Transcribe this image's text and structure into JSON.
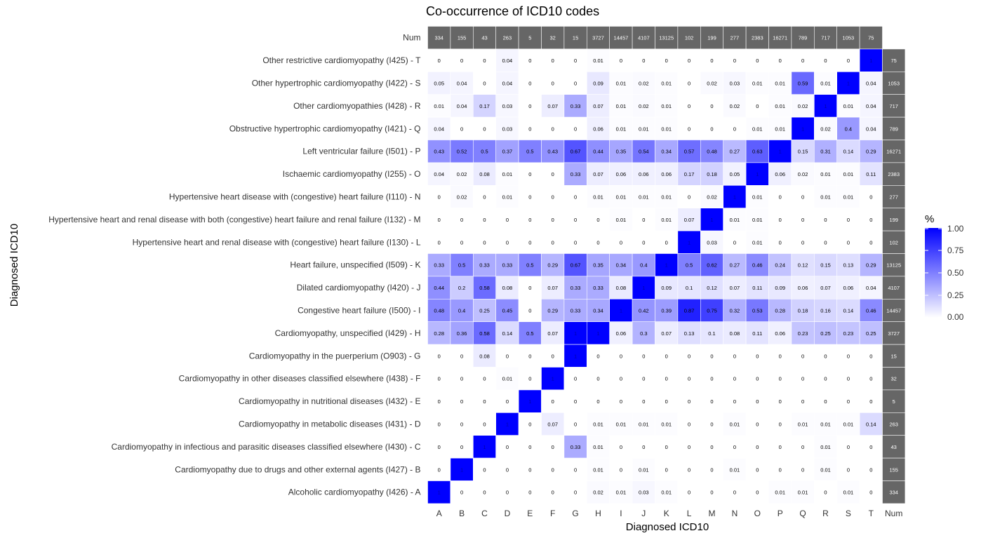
{
  "chart_data": {
    "type": "heatmap",
    "title": "Co-occurrence of ICD10 codes",
    "xlabel": "Diagnosed ICD10",
    "ylabel": "Diagnosed ICD10",
    "columns": [
      "A",
      "B",
      "C",
      "D",
      "E",
      "F",
      "G",
      "H",
      "I",
      "J",
      "K",
      "L",
      "M",
      "N",
      "O",
      "P",
      "Q",
      "R",
      "S",
      "T"
    ],
    "num_label": "Num",
    "num_column": [
      "334",
      "155",
      "43",
      "263",
      "5",
      "32",
      "15",
      "3727",
      "14457",
      "4107",
      "13125",
      "102",
      "199",
      "277",
      "2383",
      "16271",
      "789",
      "717",
      "1053",
      "75"
    ],
    "rows": [
      {
        "label": "Other restrictive cardiomyopathy (I425) - T",
        "values": [
          "0",
          "0",
          "0",
          "0.04",
          "0",
          "0",
          "0",
          "0.01",
          "0",
          "0",
          "0",
          "0",
          "0",
          "0",
          "0",
          "0",
          "0",
          "0",
          "0",
          "1"
        ],
        "num": "75"
      },
      {
        "label": "Other hypertrophic cardiomyopathy (I422) - S",
        "values": [
          "0.05",
          "0.04",
          "0",
          "0.04",
          "0",
          "0",
          "0",
          "0.09",
          "0.01",
          "0.02",
          "0.01",
          "0",
          "0.02",
          "0.03",
          "0.01",
          "0.01",
          "0.59",
          "0.01",
          "1",
          "0.04"
        ],
        "num": "1053"
      },
      {
        "label": "Other cardiomyopathies (I428) - R",
        "values": [
          "0.01",
          "0.04",
          "0.17",
          "0.03",
          "0",
          "0.07",
          "0.33",
          "0.07",
          "0.01",
          "0.02",
          "0.01",
          "0",
          "0",
          "0.02",
          "0",
          "0.01",
          "0.02",
          "1",
          "0.01",
          "0.04"
        ],
        "num": "717"
      },
      {
        "label": "Obstructive hypertrophic cardiomyopathy (I421) - Q",
        "values": [
          "0.04",
          "0",
          "0",
          "0.03",
          "0",
          "0",
          "0",
          "0.06",
          "0.01",
          "0.01",
          "0.01",
          "0",
          "0",
          "0",
          "0.01",
          "0.01",
          "1",
          "0.02",
          "0.4",
          "0.04"
        ],
        "num": "789"
      },
      {
        "label": "Left ventricular failure (I501) - P",
        "values": [
          "0.43",
          "0.52",
          "0.5",
          "0.37",
          "0.5",
          "0.43",
          "0.67",
          "0.44",
          "0.35",
          "0.54",
          "0.34",
          "0.57",
          "0.48",
          "0.27",
          "0.63",
          "1",
          "0.15",
          "0.31",
          "0.14",
          "0.29"
        ],
        "num": "16271"
      },
      {
        "label": "Ischaemic cardiomyopathy (I255) - O",
        "values": [
          "0.04",
          "0.02",
          "0.08",
          "0.01",
          "0",
          "0",
          "0.33",
          "0.07",
          "0.06",
          "0.06",
          "0.06",
          "0.17",
          "0.18",
          "0.05",
          "1",
          "0.06",
          "0.02",
          "0.01",
          "0.01",
          "0.11"
        ],
        "num": "2383"
      },
      {
        "label": "Hypertensive heart disease with (congestive) heart failure (I110) - N",
        "values": [
          "0",
          "0.02",
          "0",
          "0.01",
          "0",
          "0",
          "0",
          "0.01",
          "0.01",
          "0.01",
          "0.01",
          "0",
          "0.02",
          "1",
          "0.01",
          "0",
          "0",
          "0.01",
          "0.01",
          "0"
        ],
        "num": "277"
      },
      {
        "label": "Hypertensive heart and renal disease with both (congestive) heart failure and renal failure (I132) - M",
        "values": [
          "0",
          "0",
          "0",
          "0",
          "0",
          "0",
          "0",
          "0",
          "0.01",
          "0",
          "0.01",
          "0.07",
          "1",
          "0.01",
          "0.01",
          "0",
          "0",
          "0",
          "0",
          "0"
        ],
        "num": "199"
      },
      {
        "label": "Hypertensive heart and renal disease with (congestive) heart failure (I130) - L",
        "values": [
          "0",
          "0",
          "0",
          "0",
          "0",
          "0",
          "0",
          "0",
          "0",
          "0",
          "0",
          "1",
          "0.03",
          "0",
          "0.01",
          "0",
          "0",
          "0",
          "0",
          "0"
        ],
        "num": "102"
      },
      {
        "label": "Heart failure, unspecified (I509) - K",
        "values": [
          "0.33",
          "0.5",
          "0.33",
          "0.33",
          "0.5",
          "0.29",
          "0.67",
          "0.35",
          "0.34",
          "0.4",
          "1",
          "0.5",
          "0.62",
          "0.27",
          "0.46",
          "0.24",
          "0.12",
          "0.15",
          "0.13",
          "0.29"
        ],
        "num": "13125"
      },
      {
        "label": "Dilated cardiomyopathy (I420) - J",
        "values": [
          "0.44",
          "0.2",
          "0.58",
          "0.08",
          "0",
          "0.07",
          "0.33",
          "0.33",
          "0.08",
          "1",
          "0.09",
          "0.1",
          "0.12",
          "0.07",
          "0.11",
          "0.09",
          "0.06",
          "0.07",
          "0.06",
          "0.04"
        ],
        "num": "4107"
      },
      {
        "label": "Congestive heart failure (I500) - I",
        "values": [
          "0.48",
          "0.4",
          "0.25",
          "0.45",
          "0",
          "0.29",
          "0.33",
          "0.34",
          "1",
          "0.42",
          "0.39",
          "0.87",
          "0.75",
          "0.32",
          "0.53",
          "0.28",
          "0.18",
          "0.16",
          "0.14",
          "0.46"
        ],
        "num": "14457"
      },
      {
        "label": "Cardiomyopathy, unspecified (I429) - H",
        "values": [
          "0.28",
          "0.36",
          "0.58",
          "0.14",
          "0.5",
          "0.07",
          "1",
          "1",
          "0.06",
          "0.3",
          "0.07",
          "0.13",
          "0.1",
          "0.08",
          "0.11",
          "0.06",
          "0.23",
          "0.25",
          "0.23",
          "0.25"
        ],
        "num": "3727"
      },
      {
        "label": "Cardiomyopathy in the puerperium (O903) - G",
        "values": [
          "0",
          "0",
          "0.08",
          "0",
          "0",
          "0",
          "1",
          "0",
          "0",
          "0",
          "0",
          "0",
          "0",
          "0",
          "0",
          "0",
          "0",
          "0",
          "0",
          "0"
        ],
        "num": "15"
      },
      {
        "label": "Cardiomyopathy in other diseases classified elsewhere (I438) - F",
        "values": [
          "0",
          "0",
          "0",
          "0.01",
          "0",
          "1",
          "0",
          "0",
          "0",
          "0",
          "0",
          "0",
          "0",
          "0",
          "0",
          "0",
          "0",
          "0",
          "0",
          "0"
        ],
        "num": "32"
      },
      {
        "label": "Cardiomyopathy in nutritional diseases (I432) - E",
        "values": [
          "0",
          "0",
          "0",
          "0",
          "1",
          "0",
          "0",
          "0",
          "0",
          "0",
          "0",
          "0",
          "0",
          "0",
          "0",
          "0",
          "0",
          "0",
          "0",
          "0"
        ],
        "num": "5"
      },
      {
        "label": "Cardiomyopathy in metabolic diseases (I431) - D",
        "values": [
          "0",
          "0",
          "0",
          "1",
          "0",
          "0.07",
          "0",
          "0.01",
          "0.01",
          "0.01",
          "0.01",
          "0",
          "0",
          "0.01",
          "0",
          "0",
          "0.01",
          "0.01",
          "0.01",
          "0.14"
        ],
        "num": "263"
      },
      {
        "label": "Cardiomyopathy in infectious and parasitic diseases classified elsewhere (I430) - C",
        "values": [
          "0",
          "0",
          "1",
          "0",
          "0",
          "0",
          "0.33",
          "0.01",
          "0",
          "0",
          "0",
          "0",
          "0",
          "0",
          "0",
          "0",
          "0",
          "0.01",
          "0",
          "0"
        ],
        "num": "43"
      },
      {
        "label": "Cardiomyopathy due to drugs and other external agents (I427) - B",
        "values": [
          "0",
          "1",
          "0",
          "0",
          "0",
          "0",
          "0",
          "0.01",
          "0",
          "0.01",
          "0",
          "0",
          "0",
          "0.01",
          "0",
          "0",
          "0",
          "0.01",
          "0",
          "0"
        ],
        "num": "155"
      },
      {
        "label": "Alcoholic cardiomyopathy (I426) - A",
        "values": [
          "1",
          "0",
          "0",
          "0",
          "0",
          "0",
          "0",
          "0.02",
          "0.01",
          "0.03",
          "0.01",
          "0",
          "0",
          "0",
          "0",
          "0.01",
          "0.01",
          "0",
          "0.01",
          "0"
        ],
        "num": "334"
      }
    ],
    "legend": {
      "title": "%",
      "ticks": [
        "1.00",
        "0.75",
        "0.50",
        "0.25",
        "0.00"
      ],
      "low_color": "#ffffff",
      "high_color": "#0000ff",
      "placement": "right"
    },
    "num_tile_color": "#666666",
    "num_text_color": "#ffffff",
    "ylim": [
      0,
      1
    ]
  }
}
